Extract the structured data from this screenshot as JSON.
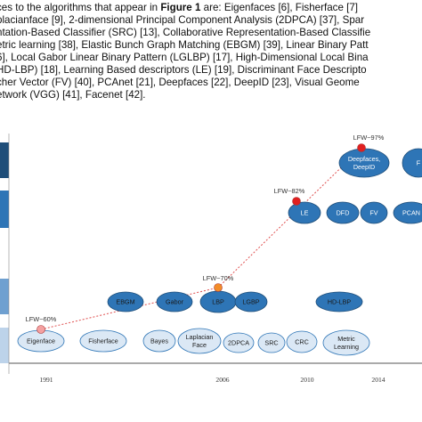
{
  "paragraph": {
    "line1_pre": "ces to the algorithms that appear in ",
    "line1_bold": "Figure 1",
    "line1_post": " are: Eigenfaces [6], Fisherface [7]",
    "line2": "placianface [9], 2-dimensional Principal Component Analysis (2DPCA) [37], Spar",
    "line3": "ntation-Based Classifier (SRC) [13], Collaborative Representation-Based Classifie",
    "line4": "etric learning [38], Elastic Bunch Graph Matching (EBGM) [39], Linear Binary Patt",
    "line5": "6], Local Gabor Linear Binary Pattern (LGLBP) [17], High-Dimensional Local Bina",
    "line6": "HD-LBP) [18], Learning Based descriptors (LE) [19], Discriminant Face Descripto",
    "line7": "cher Vector (FV) [40], PCAnet [21], Deepfaces [22], DeepID [23], Visual Geome",
    "line8": "etwork (VGG) [41], Facenet [42]."
  },
  "figure": {
    "nodes": [
      {
        "id": "eigenface",
        "label": "Eigenface",
        "tier": "holistic"
      },
      {
        "id": "fisherface",
        "label": "Fisherface",
        "tier": "holistic"
      },
      {
        "id": "bayes",
        "label": "Bayes",
        "tier": "holistic"
      },
      {
        "id": "laplacian",
        "label": "Laplacian\nFace",
        "tier": "holistic"
      },
      {
        "id": "2dpca",
        "label": "2DPCA",
        "tier": "holistic"
      },
      {
        "id": "src",
        "label": "SRC",
        "tier": "holistic"
      },
      {
        "id": "crc",
        "label": "CRC",
        "tier": "holistic"
      },
      {
        "id": "metric",
        "label": "Metric\nLearning",
        "tier": "holistic"
      },
      {
        "id": "ebgm",
        "label": "EBGM",
        "tier": "local"
      },
      {
        "id": "gabor",
        "label": "Gabor",
        "tier": "local"
      },
      {
        "id": "lbp",
        "label": "LBP",
        "tier": "local"
      },
      {
        "id": "lgbp",
        "label": "LGBP",
        "tier": "local"
      },
      {
        "id": "hdlbp",
        "label": "HD-LBP",
        "tier": "local"
      },
      {
        "id": "le",
        "label": "LE",
        "tier": "learning"
      },
      {
        "id": "dfd",
        "label": "DFD",
        "tier": "learning"
      },
      {
        "id": "fv",
        "label": "FV",
        "tier": "learning"
      },
      {
        "id": "pcanet",
        "label": "PCAN",
        "tier": "learning"
      },
      {
        "id": "deepid",
        "label": "Deepfaces,\nDeepID",
        "tier": "deep"
      },
      {
        "id": "facenet",
        "label": "F",
        "tier": "deep"
      }
    ],
    "milestones": [
      {
        "label": "LFW~60%",
        "node": "eigenface"
      },
      {
        "label": "LFW~70%",
        "node": "lbp"
      },
      {
        "label": "LFW~82%",
        "node": "le"
      },
      {
        "label": "LFW~97%",
        "node": "deepid"
      }
    ],
    "years": [
      "1991",
      "2006",
      "2010",
      "2014"
    ],
    "colors": {
      "band_dark": "#1f4e79",
      "band_mid": "#2e75b6",
      "band_light": "#6fa0d0",
      "band_pale": "#bdd3ea",
      "ellipse_dark": "#2e75b6",
      "ellipse_light": "#dbe8f5",
      "milestone_red": "#e02020",
      "milestone_orange": "#f28c28",
      "milestone_pink": "#f4a0a0",
      "trend": "#e05050"
    }
  }
}
